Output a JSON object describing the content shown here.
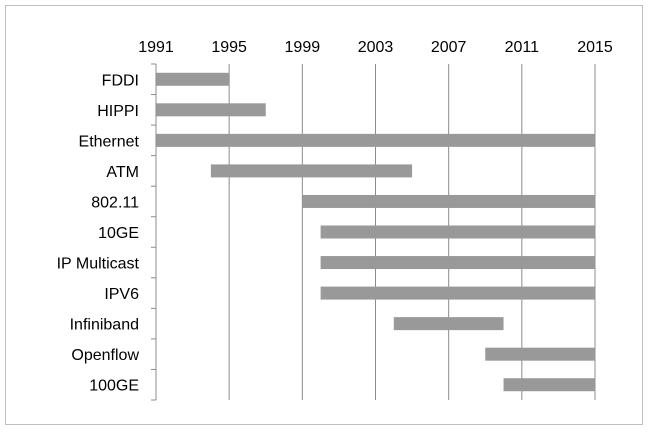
{
  "chart_data": {
    "type": "bar",
    "orientation": "horizontal-range",
    "title": "",
    "xlabel": "",
    "ylabel": "",
    "x_axis_position": "top",
    "xlim": [
      1991,
      2015
    ],
    "x_ticks": [
      "1991",
      "1995",
      "1999",
      "2003",
      "2007",
      "2011",
      "2015"
    ],
    "grid": "vertical",
    "legend": "none",
    "bar_color": "#999999",
    "categories": [
      "FDDI",
      "HIPPI",
      "Ethernet",
      "ATM",
      "802.11",
      "10GE",
      "IP Multicast",
      "IPV6",
      "Infiniband",
      "Openflow",
      "100GE"
    ],
    "ranges": [
      [
        1991,
        1995
      ],
      [
        1991,
        1997
      ],
      [
        1991,
        2015
      ],
      [
        1994,
        2005
      ],
      [
        1999,
        2015
      ],
      [
        2000,
        2015
      ],
      [
        2000,
        2015
      ],
      [
        2000,
        2015
      ],
      [
        2004,
        2010
      ],
      [
        2009,
        2015
      ],
      [
        2010,
        2015
      ]
    ]
  }
}
